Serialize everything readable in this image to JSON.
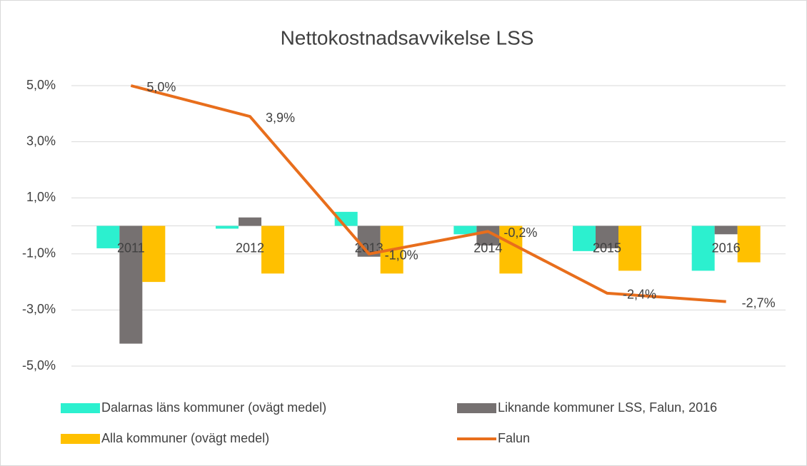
{
  "chart_data": {
    "type": "bar",
    "title": "Nettokostnadsavvikelse LSS",
    "categories": [
      "2011",
      "2012",
      "2013",
      "2014",
      "2015",
      "2016"
    ],
    "series": [
      {
        "name": "Dalarnas läns kommuner (ovägt medel)",
        "color": "#2cf0cf",
        "values": [
          -0.8,
          -0.1,
          0.5,
          -0.3,
          -0.9,
          -1.6
        ]
      },
      {
        "name": "Liknande kommuner LSS, Falun, 2016",
        "color": "#767171",
        "values": [
          -4.2,
          0.3,
          -1.1,
          -0.7,
          -0.8,
          -0.3
        ]
      },
      {
        "name": "Alla kommuner (ovägt medel)",
        "color": "#ffc000",
        "values": [
          -2.0,
          -1.7,
          -1.7,
          -1.7,
          -1.6,
          -1.3
        ]
      },
      {
        "name": "Falun",
        "type": "line",
        "color": "#e86e1c",
        "values": [
          5.0,
          3.9,
          -1.0,
          -0.2,
          -2.4,
          -2.7
        ],
        "value_labels": [
          "5,0%",
          "3,9%",
          "-1,0%",
          "-0,2%",
          "-2,4%",
          "-2,7%"
        ]
      }
    ],
    "ylim": [
      -5,
      5
    ],
    "yticks": [
      {
        "value": -5,
        "label": "-5,0%"
      },
      {
        "value": -3,
        "label": "-3,0%"
      },
      {
        "value": -1,
        "label": "-1,0%"
      },
      {
        "value": 1,
        "label": "1,0%"
      },
      {
        "value": 3,
        "label": "3,0%"
      },
      {
        "value": 5,
        "label": "5,0%"
      }
    ],
    "grid": true
  }
}
